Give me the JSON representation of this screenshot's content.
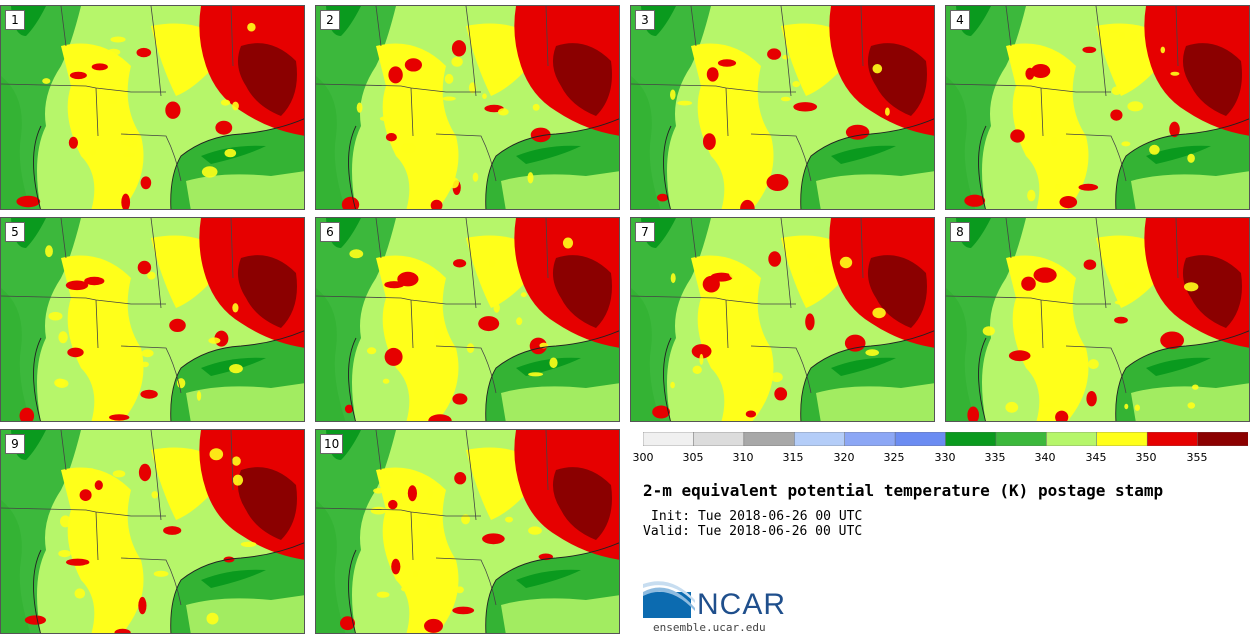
{
  "title": "2-m equivalent potential temperature (K) postage stamp",
  "init_text": "Init: Tue 2018-06-26 00 UTC",
  "valid_text": "Valid: Tue 2018-06-26 00 UTC",
  "logo": {
    "text": "NCAR",
    "url": "ensemble.ucar.edu"
  },
  "colors": {
    "ocean_green": "#34b334",
    "dark_green": "#0a9a1e",
    "mid_green": "#3cb83c",
    "light_green": "#b6f66a",
    "yellow": "#ffff1a",
    "red": "#e60000",
    "dark_red": "#8b0000",
    "border_line": "#444444"
  },
  "members": [
    "1",
    "2",
    "3",
    "4",
    "5",
    "6",
    "7",
    "8",
    "9",
    "10"
  ],
  "colorbar": {
    "tick_labels": [
      "300",
      "305",
      "310",
      "315",
      "320",
      "325",
      "330",
      "335",
      "340",
      "345",
      "350",
      "355"
    ],
    "bin_colors": [
      "#f0f0f0",
      "#dcdcdc",
      "#a8a8a8",
      "#b4cdf8",
      "#8ca7f5",
      "#6b8cf2",
      "#0a9a1e",
      "#3cb83c",
      "#b6f66a",
      "#ffff1a",
      "#e60000",
      "#8b0000"
    ]
  }
}
